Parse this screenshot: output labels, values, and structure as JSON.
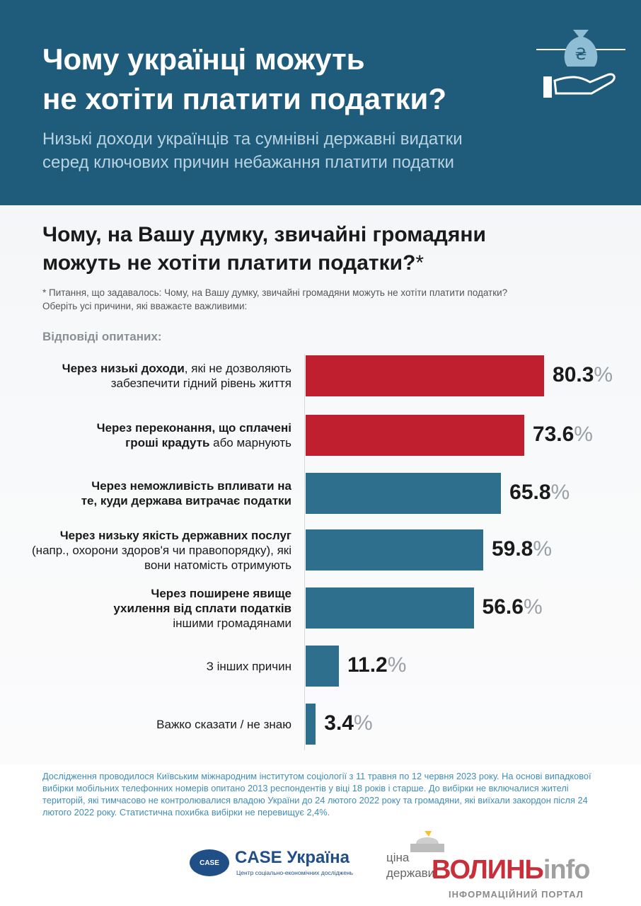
{
  "header": {
    "title_line1": "Чому українці можуть",
    "title_line2": "не хотіти платити податки?",
    "subtitle_line1": "Низькі доходи українців та сумнівні державні видатки",
    "subtitle_line2": "серед ключових причин небажання платити податки"
  },
  "question": {
    "title_line1": "Чому, на Вашу думку, звичайні громадяни",
    "title_line2": "можуть не хотіти платити податки?",
    "star": "*",
    "note_line1": "* Питання, що задавалось: Чому, на Вашу думку, звичайні громадяни можуть не хотіти платити податки?",
    "note_line2": "Оберіть усі причини, які вважаєте важливими:"
  },
  "responses_label": "Відповіді опитаних:",
  "colors": {
    "header_bg": "#1f5b7a",
    "red_bar": "#c01f2f",
    "blue_bar": "#2e6f8e"
  },
  "chart_data": {
    "type": "bar",
    "orientation": "horizontal",
    "unit": "%",
    "xlim": [
      0,
      100
    ],
    "categories": [
      "Через низькі доходи, які не дозволяють забезпечити гідний рівень життя",
      "Через переконання, що сплачені гроші крадуть або марнують",
      "Через неможливість впливати на те, куди держава витрачає податки",
      "Через низьку якість державних послуг (напр., охорони здоров'я чи правопорядку), які вони натомість отримують",
      "Через поширене явище ухилення від сплати податків іншими громадянами",
      "З інших причин",
      "Важко сказати / не знаю"
    ],
    "values": [
      80.3,
      73.6,
      65.8,
      59.8,
      56.6,
      11.2,
      3.4
    ],
    "value_labels": [
      "80.3",
      "73.6",
      "65.8",
      "59.8",
      "56.6",
      "11.2",
      "3.4"
    ],
    "bar_colors": [
      "#c01f2f",
      "#c01f2f",
      "#2e6f8e",
      "#2e6f8e",
      "#2e6f8e",
      "#2e6f8e",
      "#2e6f8e"
    ],
    "label_parts": [
      [
        {
          "b": "Через низькі доходи"
        },
        {
          "t": ", які не дозволяють"
        },
        {
          "br": ""
        },
        {
          "t": "забезпечити гідний рівень життя"
        }
      ],
      [
        {
          "b": "Через переконання, що сплачені"
        },
        {
          "br": ""
        },
        {
          "b": "гроші крадуть"
        },
        {
          "t": " або марнують"
        }
      ],
      [
        {
          "b": "Через неможливість впливати на"
        },
        {
          "br": ""
        },
        {
          "b": "те, куди держава витрачає податки"
        }
      ],
      [
        {
          "b": "Через низьку якість державних послуг"
        },
        {
          "br": ""
        },
        {
          "t": "(напр., охорони здоров'я чи правопорядку), які"
        },
        {
          "br": ""
        },
        {
          "t": "вони натомість отримують"
        }
      ],
      [
        {
          "b": "Через поширене явище"
        },
        {
          "br": ""
        },
        {
          "b": "ухилення від сплати податків"
        },
        {
          "br": ""
        },
        {
          "t": "іншими громадянами"
        }
      ],
      [
        {
          "t": "З інших причин"
        }
      ],
      [
        {
          "t": "Важко сказати / не знаю"
        }
      ]
    ]
  },
  "footnote": "Дослідження проводилося Київським міжнародним інститутом соціології з 11 травня по 12 червня 2023 року. На основі випадкової вибірки мобільних телефонних номерів опитано 2013 респондентів у віці 18 років і старше. До вибірки не включалися жителі територій, які тимчасово не контролювалися владою України до 24 лютого 2022 року та громадяни, які виїхали закордон після 24 лютого 2022 року. Статистична похибка вибірки не перевищує 2,4%.",
  "logos": {
    "case_badge": "CASE",
    "case_name": "CASE Україна",
    "case_desc": "Центр соціально-економічних досліджень",
    "tsina_top": "ціна",
    "tsina_bottom": "держави"
  },
  "watermark": {
    "brand": "ВОЛИНЬ",
    "brand_suffix": "info",
    "tagline": "ІНФОРМАЦІЙНИЙ ПОРТАЛ"
  },
  "icon": {
    "name": "money-bag-hand-icon",
    "symbol": "₴"
  }
}
